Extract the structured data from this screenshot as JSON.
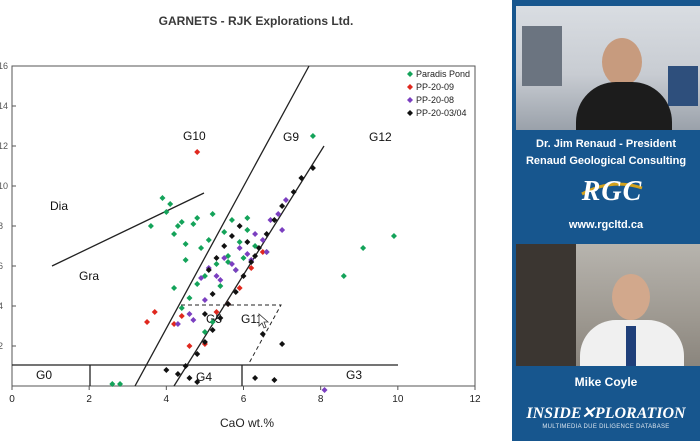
{
  "slide": {
    "title": "GARNETS - RJK Explorations Ltd.",
    "xlabel": "CaO wt.%",
    "region_labels": {
      "dia": "Dia",
      "gra": "Gra",
      "g0": "G0",
      "g3": "G3",
      "g4": "G4",
      "g5": "G5",
      "g9": "G9",
      "g10": "G10",
      "g11": "G11",
      "g12": "G12"
    }
  },
  "chart_data": {
    "type": "scatter",
    "title": "GARNETS - RJK Explorations Ltd.",
    "xlabel": "CaO wt.%",
    "ylabel": "",
    "xlim": [
      0,
      12
    ],
    "ylim": [
      0,
      16
    ],
    "x_ticks": [
      0,
      2,
      4,
      6,
      8,
      10,
      12
    ],
    "y_ticks": [
      "2",
      "4",
      "6",
      "8",
      "10",
      "12",
      "14",
      "16"
    ],
    "grid": false,
    "legend_position": "top-right",
    "series": [
      {
        "name": "Paradis Pond",
        "color": "#14a35a",
        "x": [
          3.6,
          3.9,
          4.0,
          4.1,
          4.2,
          4.3,
          4.4,
          4.5,
          4.5,
          4.7,
          4.8,
          4.9,
          5.0,
          5.1,
          5.2,
          5.3,
          5.4,
          5.5,
          5.6,
          5.7,
          5.8,
          5.9,
          6.0,
          6.1,
          6.3,
          4.4,
          4.6,
          4.8,
          5.0,
          5.2,
          2.6,
          2.8,
          7.8,
          8.6,
          9.1,
          9.9,
          4.2,
          5.6,
          6.1,
          6.6
        ],
        "y": [
          8.0,
          9.4,
          8.7,
          9.1,
          7.6,
          8.0,
          8.2,
          6.3,
          7.1,
          8.1,
          8.4,
          6.9,
          5.5,
          7.3,
          8.6,
          6.1,
          5.0,
          7.7,
          6.5,
          8.3,
          5.8,
          7.2,
          6.4,
          8.4,
          7.0,
          3.9,
          4.4,
          5.1,
          2.7,
          3.2,
          0.1,
          0.1,
          12.5,
          5.5,
          6.9,
          7.5,
          4.9,
          6.2,
          7.8,
          6.7
        ]
      },
      {
        "name": "PP-20-09",
        "color": "#e0281e",
        "x": [
          3.5,
          3.7,
          4.2,
          4.4,
          4.6,
          5.0,
          5.3,
          5.6,
          5.9,
          6.2,
          6.5,
          4.8
        ],
        "y": [
          3.2,
          3.7,
          3.1,
          3.5,
          2.0,
          2.1,
          3.7,
          4.1,
          4.9,
          5.9,
          6.7,
          11.7
        ],
        "labels": []
      },
      {
        "name": "PP-20-08",
        "color": "#7b3fc0",
        "x": [
          4.3,
          4.6,
          4.9,
          5.1,
          5.3,
          5.5,
          5.7,
          5.9,
          6.1,
          6.3,
          6.5,
          6.7,
          6.9,
          7.1,
          5.4,
          5.8,
          6.2,
          6.6,
          7.0,
          8.1,
          4.7,
          5.0
        ],
        "y": [
          3.1,
          3.6,
          5.4,
          5.9,
          5.5,
          6.4,
          6.1,
          6.9,
          6.6,
          7.6,
          7.3,
          8.3,
          8.6,
          9.3,
          5.3,
          5.8,
          6.3,
          6.7,
          7.8,
          -0.2,
          3.3,
          4.3
        ]
      },
      {
        "name": "PP-20-03/04",
        "color": "#111111",
        "x": [
          4.0,
          4.3,
          4.5,
          4.8,
          5.0,
          5.2,
          5.4,
          5.6,
          5.8,
          6.0,
          6.2,
          6.4,
          6.6,
          6.8,
          7.0,
          7.3,
          7.5,
          7.8,
          5.1,
          5.3,
          5.5,
          5.7,
          5.9,
          6.1,
          6.3,
          4.6,
          4.8,
          5.0,
          5.2,
          6.3,
          6.5,
          6.8,
          7.0
        ],
        "y": [
          0.8,
          0.6,
          1.0,
          1.6,
          2.2,
          2.8,
          3.4,
          4.1,
          4.7,
          5.5,
          6.2,
          6.9,
          7.6,
          8.3,
          9.0,
          9.7,
          10.4,
          10.9,
          5.8,
          6.4,
          7.0,
          7.5,
          8.0,
          7.2,
          6.5,
          0.4,
          0.2,
          3.6,
          4.6,
          0.4,
          2.6,
          0.3,
          2.1
        ]
      }
    ]
  },
  "sidebar": {
    "presenter_name": "Dr. Jim Renaud - President",
    "company": "Renaud Geological Consulting",
    "logo_text": "RGC",
    "website": "www.rgcltd.ca",
    "guest_name": "Mike Coyle",
    "bottom_logo": "INSIDE✕PLORATION",
    "bottom_sub": "MULTIMEDIA DUE DILIGENCE DATABASE",
    "accent": "#17568e"
  }
}
